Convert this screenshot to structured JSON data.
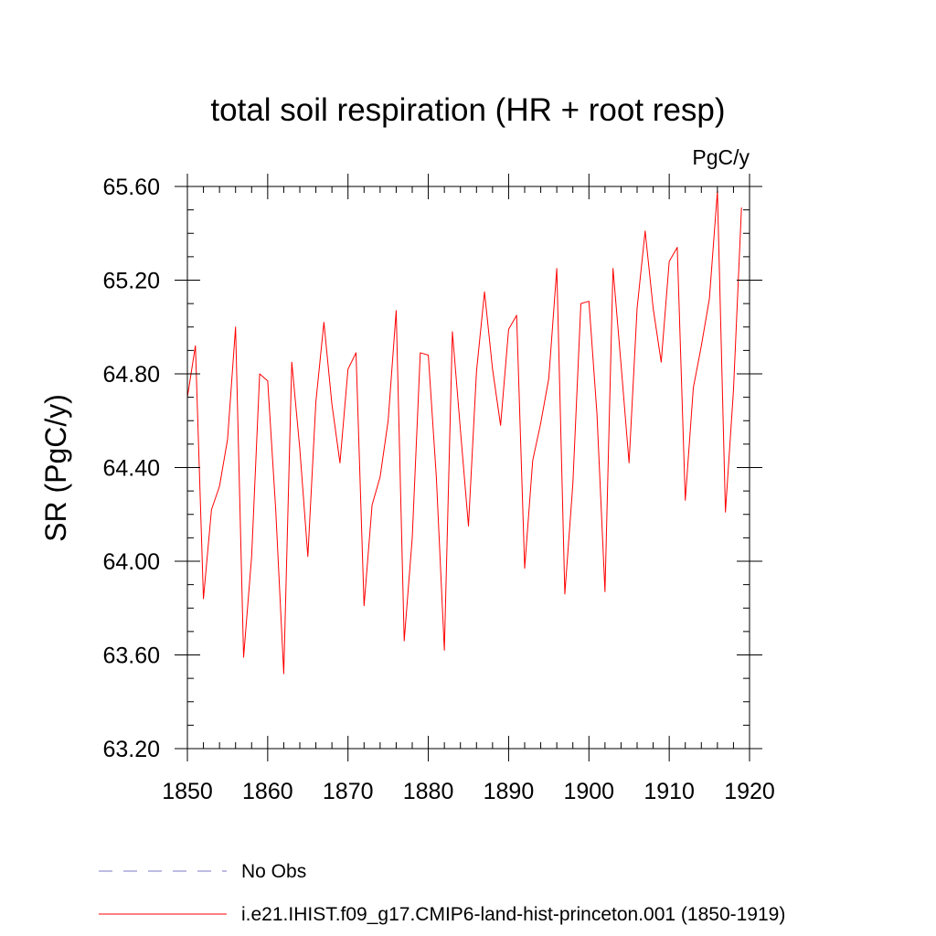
{
  "chart_data": {
    "type": "line",
    "title": "total soil respiration (HR + root resp)",
    "units": "PgC/y",
    "ylabel": "SR  (PgC/y)",
    "xlabel": "",
    "xlim": [
      1850,
      1920
    ],
    "ylim": [
      63.2,
      65.6
    ],
    "x_ticks": [
      1850,
      1860,
      1870,
      1880,
      1890,
      1900,
      1910,
      1920
    ],
    "y_ticks": [
      63.2,
      63.6,
      64.0,
      64.4,
      64.8,
      65.2,
      65.6
    ],
    "y_tick_labels": [
      "63.20",
      "63.60",
      "64.00",
      "64.40",
      "64.80",
      "65.20",
      "65.60"
    ],
    "grid": false,
    "legend_position": "bottom-left",
    "series": [
      {
        "name": "i.e21.IHIST.f09_g17.CMIP6-land-hist-princeton.001 (1850-1919)",
        "color": "#ff0000",
        "style": "solid",
        "x": [
          1850,
          1851,
          1852,
          1853,
          1854,
          1855,
          1856,
          1857,
          1858,
          1859,
          1860,
          1861,
          1862,
          1863,
          1864,
          1865,
          1866,
          1867,
          1868,
          1869,
          1870,
          1871,
          1872,
          1873,
          1874,
          1875,
          1876,
          1877,
          1878,
          1879,
          1880,
          1881,
          1882,
          1883,
          1884,
          1885,
          1886,
          1887,
          1888,
          1889,
          1890,
          1891,
          1892,
          1893,
          1894,
          1895,
          1896,
          1897,
          1898,
          1899,
          1900,
          1901,
          1902,
          1903,
          1904,
          1905,
          1906,
          1907,
          1908,
          1909,
          1910,
          1911,
          1912,
          1913,
          1914,
          1915,
          1916,
          1917,
          1918,
          1919
        ],
        "values": [
          64.7,
          64.92,
          63.84,
          64.22,
          64.32,
          64.52,
          65.0,
          63.59,
          64.02,
          64.8,
          64.77,
          64.22,
          63.52,
          64.85,
          64.48,
          64.02,
          64.68,
          65.02,
          64.67,
          64.42,
          64.82,
          64.89,
          63.81,
          64.24,
          64.36,
          64.6,
          65.07,
          63.66,
          64.1,
          64.89,
          64.88,
          64.36,
          63.62,
          64.98,
          64.56,
          64.15,
          64.81,
          65.15,
          64.82,
          64.58,
          64.99,
          65.05,
          63.97,
          64.43,
          64.59,
          64.78,
          65.25,
          63.86,
          64.33,
          65.1,
          65.11,
          64.63,
          63.87,
          65.25,
          64.84,
          64.42,
          65.08,
          65.41,
          65.08,
          64.85,
          65.28,
          65.34,
          64.26,
          64.74,
          64.92,
          65.12,
          65.58,
          64.21,
          64.73,
          65.51
        ]
      },
      {
        "name": "No Obs",
        "color": "#7a78c8",
        "style": "dashed",
        "values": []
      }
    ]
  }
}
